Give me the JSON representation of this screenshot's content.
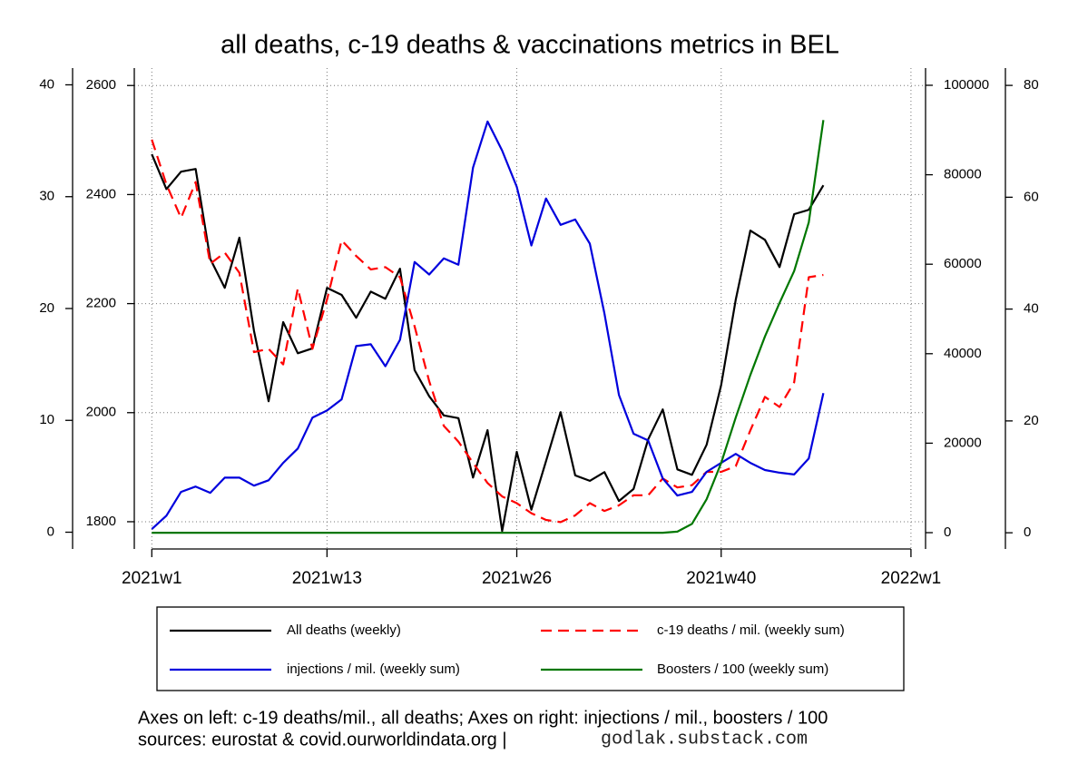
{
  "chart_data": {
    "type": "line",
    "title": "all deaths, c-19 deaths & vaccinations metrics in BEL",
    "x": [
      1,
      2,
      3,
      4,
      5,
      6,
      7,
      8,
      9,
      10,
      11,
      12,
      13,
      14,
      15,
      16,
      17,
      18,
      19,
      20,
      21,
      22,
      23,
      24,
      25,
      26,
      27,
      28,
      29,
      30,
      31,
      32,
      33,
      34,
      35,
      36,
      37,
      38,
      39,
      40,
      41,
      42,
      43,
      44,
      45,
      46,
      47
    ],
    "xlim": [
      -0.2,
      54
    ],
    "xticks": [
      {
        "value": 1,
        "label": "2021w1"
      },
      {
        "value": 13,
        "label": "2021w13"
      },
      {
        "value": 26,
        "label": "2021w26"
      },
      {
        "value": 40,
        "label": "2021w40"
      },
      {
        "value": 53,
        "label": "2022w1"
      }
    ],
    "ylim": [
      -1.5,
      41.5
    ],
    "yticks": [
      0,
      10,
      20,
      30,
      40
    ],
    "y2lim": [
      1750,
      2632
    ],
    "y2ticks": [
      1800,
      2000,
      2200,
      2400,
      2600
    ],
    "y3lim": [
      -3650,
      103850
    ],
    "y3ticks": [
      0,
      20000,
      40000,
      60000,
      80000,
      100000
    ],
    "y4lim": [
      -2.9,
      83.1
    ],
    "y4ticks": [
      0,
      20,
      40,
      60,
      80
    ],
    "grid": true,
    "series": [
      {
        "name": "All deaths (weekly)",
        "color": "#000000",
        "axis": "y2",
        "dashed": false,
        "values": [
          2474,
          2410,
          2442,
          2447,
          2282,
          2229,
          2321,
          2150,
          2021,
          2166,
          2109,
          2118,
          2229,
          2216,
          2174,
          2222,
          2209,
          2264,
          2078,
          2030,
          1995,
          1990,
          1881,
          1968,
          1783,
          1928,
          1822,
          1911,
          2001,
          1885,
          1875,
          1891,
          1838,
          1860,
          1951,
          2006,
          1896,
          1886,
          1941,
          2051,
          2207,
          2334,
          2317,
          2267,
          2364,
          2372,
          2417
        ]
      },
      {
        "name": "c-19 deaths / mil. (weekly sum)",
        "color": "#ff0000",
        "axis": "y",
        "dashed": true,
        "values": [
          35.1,
          31.1,
          28.1,
          31.3,
          24.0,
          25.0,
          23.2,
          16.1,
          16.4,
          15.0,
          21.8,
          16.4,
          20.8,
          26.1,
          24.7,
          23.5,
          23.7,
          22.8,
          18.4,
          13.5,
          9.5,
          8.1,
          6.2,
          4.4,
          3.2,
          2.6,
          1.7,
          1.1,
          0.9,
          1.5,
          2.6,
          1.9,
          2.4,
          3.3,
          3.3,
          4.8,
          4.0,
          4.2,
          5.4,
          5.4,
          5.9,
          9.1,
          12.1,
          11.2,
          13.4,
          22.8,
          23.0
        ]
      },
      {
        "name": "injections / mil. (weekly sum)",
        "color": "#0000dd",
        "axis": "y3",
        "dashed": false,
        "values": [
          800,
          3800,
          9100,
          10300,
          8900,
          12300,
          12300,
          10500,
          11700,
          15600,
          18800,
          25700,
          27300,
          29800,
          41700,
          42100,
          37200,
          43100,
          60500,
          57700,
          61300,
          59900,
          81600,
          91900,
          85400,
          77300,
          64200,
          74700,
          68800,
          70000,
          64600,
          49000,
          30800,
          22100,
          20600,
          12100,
          8300,
          9100,
          13600,
          15600,
          17600,
          15600,
          14000,
          13400,
          13000,
          16600,
          31200
        ]
      },
      {
        "name": "Boosters / 100 (weekly sum)",
        "color": "#007700",
        "axis": "y4",
        "dashed": false,
        "values": [
          0,
          0,
          0,
          0,
          0,
          0,
          0,
          0,
          0,
          0,
          0,
          0,
          0,
          0,
          0,
          0,
          0,
          0,
          0,
          0,
          0,
          0,
          0,
          0,
          0,
          0,
          0,
          0,
          0,
          0,
          0,
          0,
          0,
          0,
          0,
          0,
          0.2,
          1.6,
          6,
          12.5,
          20.6,
          28.2,
          35.1,
          41.1,
          46.8,
          55.5,
          73.8
        ]
      }
    ],
    "notes": [
      "Axes on left: c-19 deaths/mil., all deaths; Axes on right: injections / mil., boosters / 100",
      "sources: eurostat & covid.ourworldindata.org |"
    ],
    "credit": "godlak.substack.com"
  }
}
